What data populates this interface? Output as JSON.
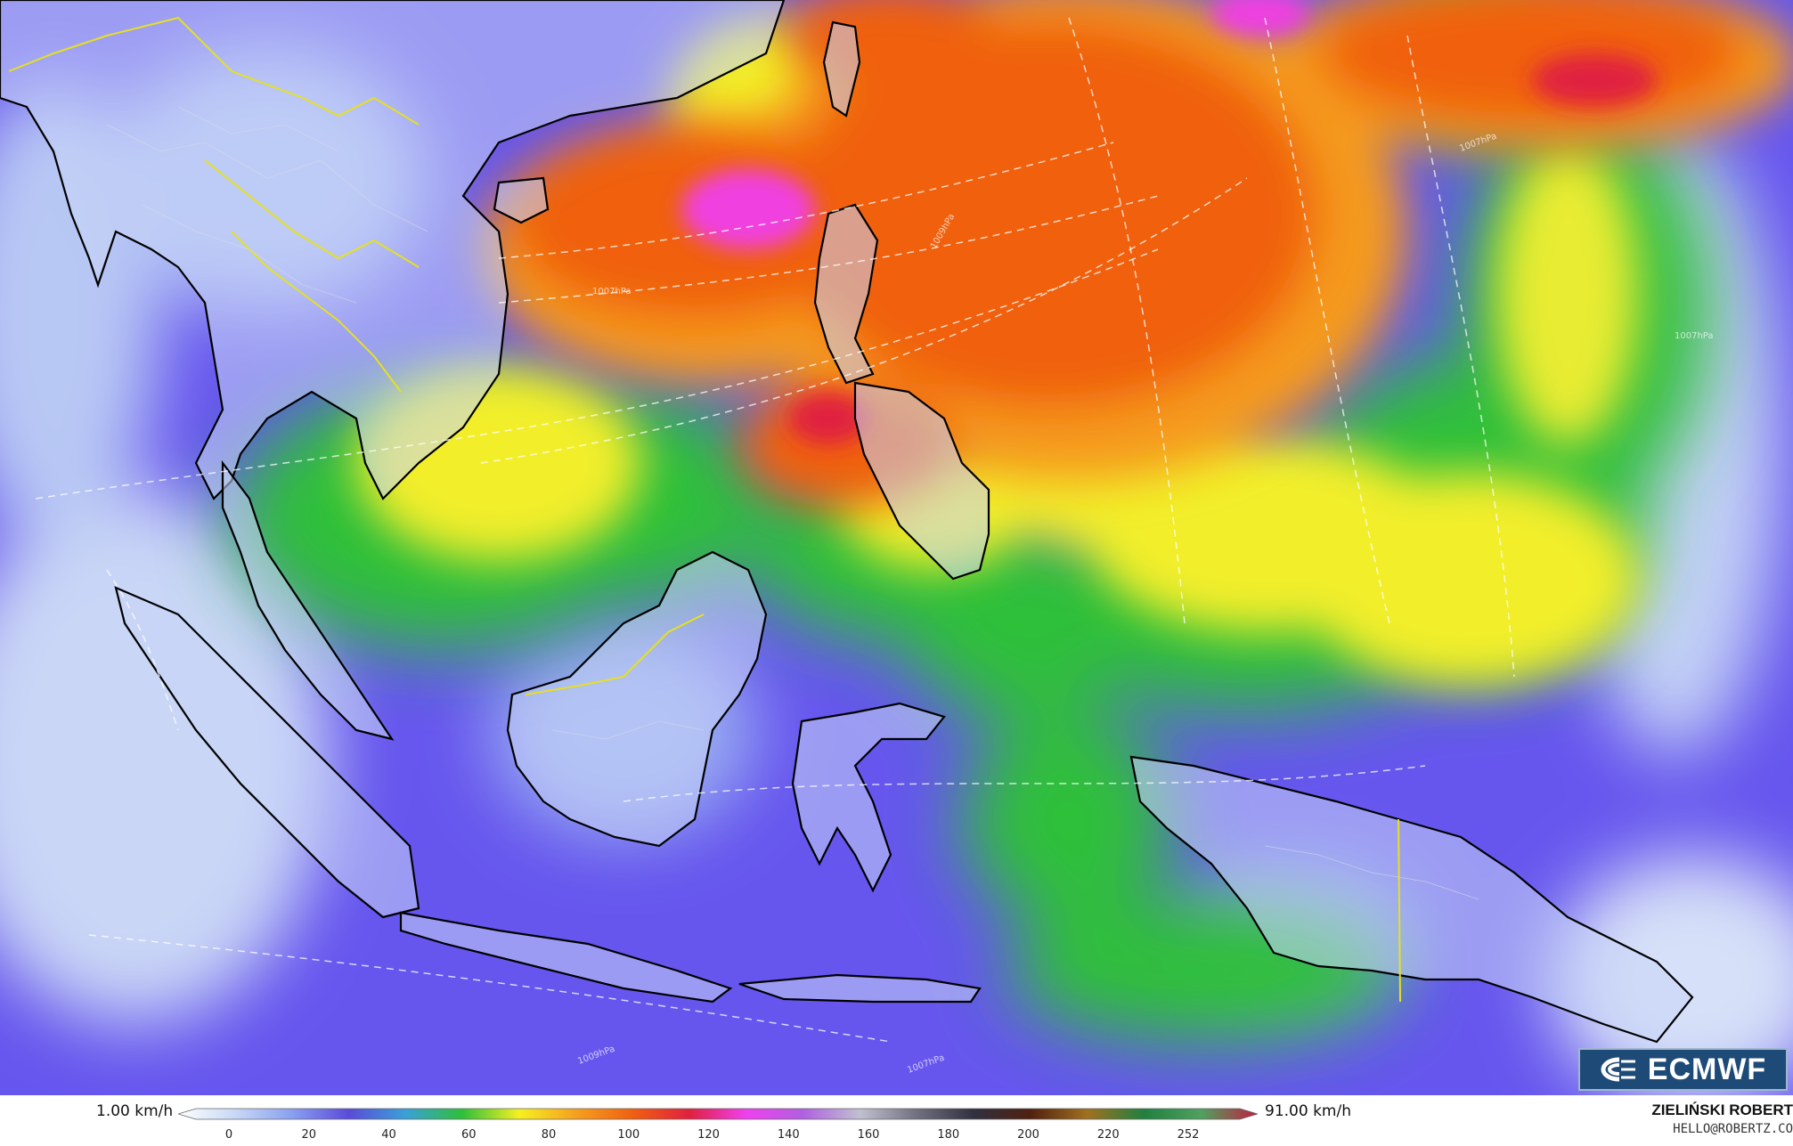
{
  "map": {
    "region": "Southeast Asia / Western Pacific",
    "field": "wind speed",
    "isobar_labels": [
      "1007hPa",
      "1009hPa",
      "1007hPa",
      "1007hPa",
      "1009hPa",
      "1007hPa"
    ]
  },
  "legend": {
    "min_label": "1.00 km/h",
    "max_label": "91.00 km/h",
    "ticks": [
      "0",
      "20",
      "40",
      "60",
      "80",
      "100",
      "120",
      "140",
      "160",
      "180",
      "200",
      "220",
      "252"
    ],
    "colors": [
      "#ffffff",
      "#c8d8f5",
      "#8aa0f0",
      "#5a4bd8",
      "#3aa0d8",
      "#2fbf3a",
      "#f5f020",
      "#f5a020",
      "#f06010",
      "#e02040",
      "#f040f0",
      "#b060e0",
      "#c0c0d0",
      "#707080",
      "#303040",
      "#502010",
      "#a07020",
      "#208040",
      "#50a060",
      "#c02040"
    ]
  },
  "branding": {
    "logo_text": "ECMWF",
    "author": "ZIELIŃSKI ROBERT",
    "email": "HELLO@ROBERTZ.CO"
  }
}
